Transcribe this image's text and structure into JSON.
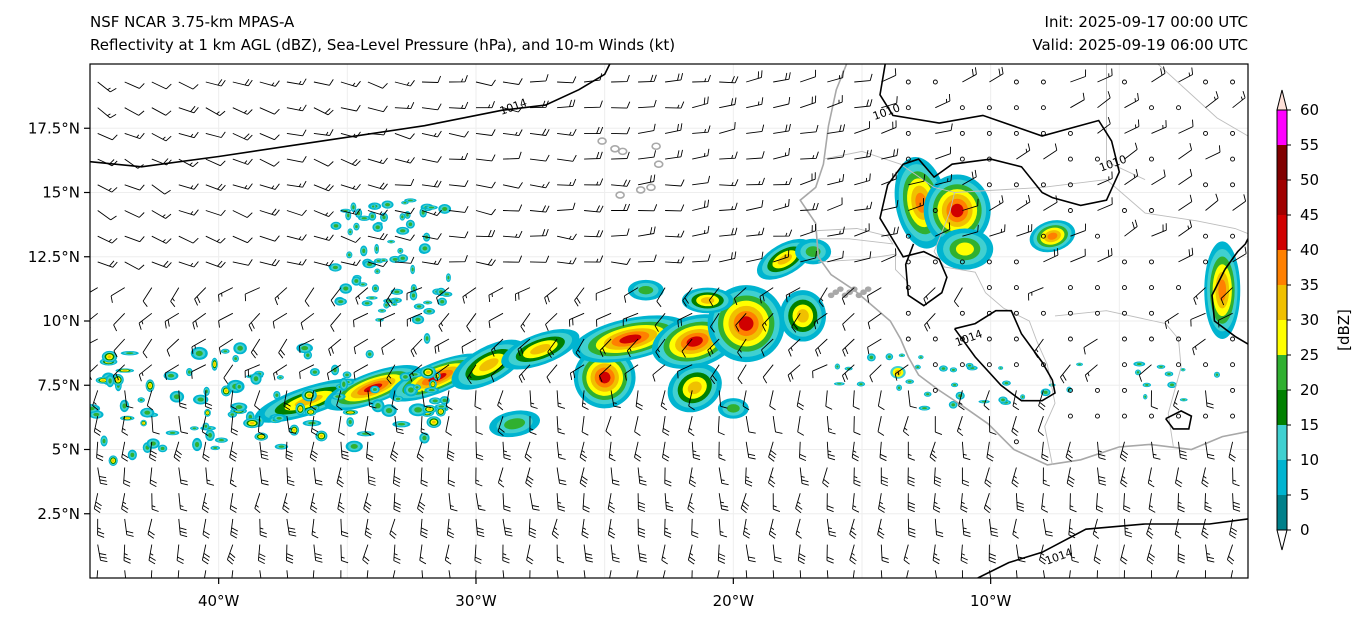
{
  "header": {
    "left_line1": "NSF NCAR 3.75-km MPAS-A",
    "left_line2": "Reflectivity at 1 km AGL (dBZ), Sea-Level Pressure (hPa), and 10-m Winds (kt)",
    "right_line1": "Init: 2025-09-17 00:00 UTC",
    "right_line2": "Valid: 2025-09-19 06:00 UTC"
  },
  "map": {
    "lon_range": [
      -45,
      0
    ],
    "lat_range": [
      0,
      20
    ],
    "lon_ticks": [
      {
        "value": -40,
        "label": "40°W"
      },
      {
        "value": -30,
        "label": "30°W"
      },
      {
        "value": -20,
        "label": "20°W"
      },
      {
        "value": -10,
        "label": "10°W"
      }
    ],
    "lat_ticks": [
      {
        "value": 2.5,
        "label": "2.5°N"
      },
      {
        "value": 5,
        "label": "5°N"
      },
      {
        "value": 7.5,
        "label": "7.5°N"
      },
      {
        "value": 10,
        "label": "10°N"
      },
      {
        "value": 12.5,
        "label": "12.5°N"
      },
      {
        "value": 15,
        "label": "15°N"
      },
      {
        "value": 17.5,
        "label": "17.5°N"
      }
    ],
    "contour_labels": [
      {
        "text": "1014",
        "lon": -28.5,
        "lat": 18.2
      },
      {
        "text": "1010",
        "lon": -14,
        "lat": 18.0
      },
      {
        "text": "1010",
        "lon": -5.2,
        "lat": 16.0
      },
      {
        "text": "1014",
        "lon": -10.8,
        "lat": 9.2
      },
      {
        "text": "1014",
        "lon": -7.3,
        "lat": 0.7
      }
    ]
  },
  "colorbar": {
    "label": "[dBZ]",
    "ticks": [
      "0",
      "5",
      "10",
      "15",
      "20",
      "25",
      "30",
      "35",
      "40",
      "45",
      "50",
      "55",
      "60"
    ],
    "colors": [
      "#ffffff",
      "#00808a",
      "#00b4d0",
      "#40d0d0",
      "#008000",
      "#30b030",
      "#ffff00",
      "#f0c000",
      "#ff8000",
      "#d00000",
      "#a00000",
      "#800000",
      "#ff00ff",
      "#ffe0d8"
    ]
  }
}
